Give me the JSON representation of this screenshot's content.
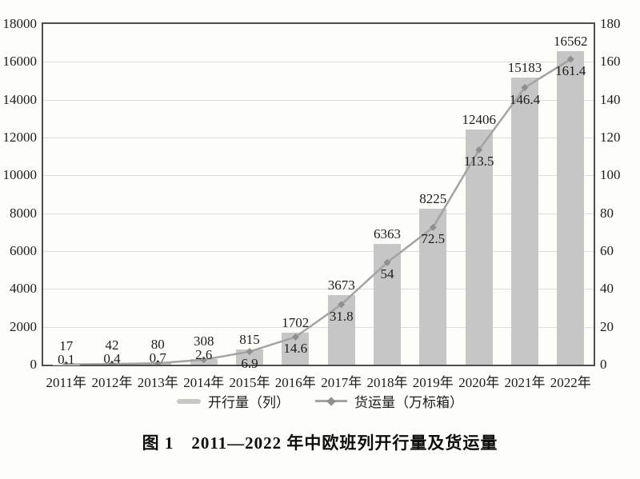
{
  "figure_title": "图 1　2011—2022 年中欧班列开行量及货运量",
  "legend": {
    "bar_label": "开行量（列）",
    "line_label": "货运量（万标箱）"
  },
  "chart_data": {
    "type": "bar",
    "combo": "bar+line",
    "title": "图 1　2011—2022 年中欧班列开行量及货运量",
    "categories": [
      "2011年",
      "2012年",
      "2013年",
      "2014年",
      "2015年",
      "2016年",
      "2017年",
      "2018年",
      "2019年",
      "2020年",
      "2021年",
      "2022年"
    ],
    "series": [
      {
        "name": "开行量（列）",
        "type": "bar",
        "axis": "left",
        "values": [
          17,
          42,
          80,
          308,
          815,
          1702,
          3673,
          6363,
          8225,
          12406,
          15183,
          16562
        ]
      },
      {
        "name": "货运量（万标箱）",
        "type": "line",
        "axis": "right",
        "values": [
          0.1,
          0.4,
          0.7,
          2.6,
          6.9,
          14.6,
          31.8,
          54,
          72.5,
          113.5,
          146.4,
          161.4
        ]
      }
    ],
    "left_axis": {
      "min": 0,
      "max": 18000,
      "step": 2000,
      "ticks": [
        "0",
        "2000",
        "4000",
        "6000",
        "8000",
        "10000",
        "12000",
        "14000",
        "16000",
        "18000"
      ]
    },
    "right_axis": {
      "min": 0,
      "max": 180,
      "step": 20,
      "ticks": [
        "0",
        "20",
        "40",
        "60",
        "80",
        "100",
        "120",
        "140",
        "160",
        "180"
      ]
    },
    "grid": true,
    "legend_position": "bottom",
    "colors": {
      "bar": "#c6c6c6",
      "line": "#a3a3a3",
      "marker": "#8f8f8f",
      "axis": "#4e4e4e",
      "grid": "#dcdcdc",
      "text": "#1c1c1c"
    }
  }
}
